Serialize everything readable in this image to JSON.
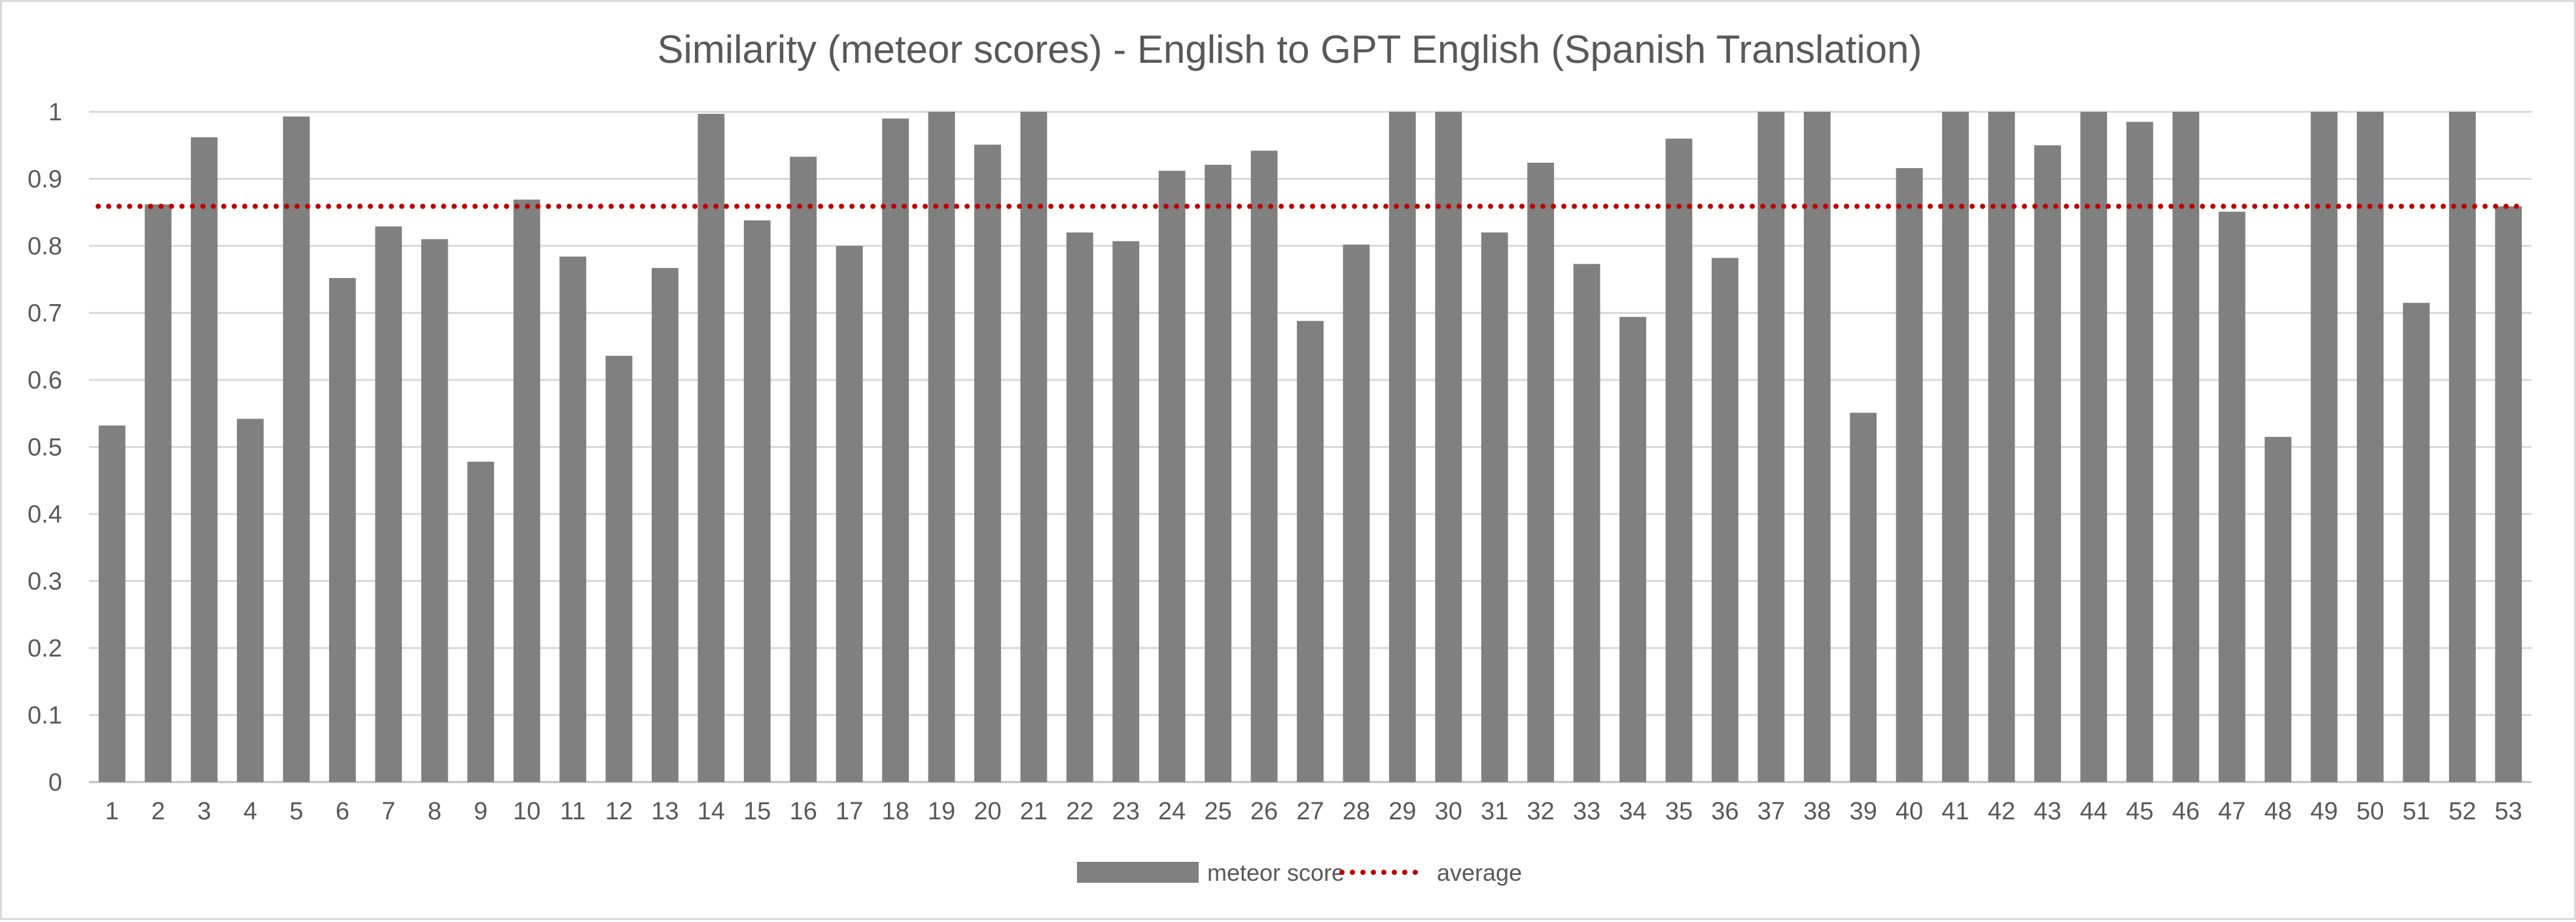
{
  "chart_data": {
    "type": "bar",
    "title": "Similarity (meteor scores) - English to GPT English (Spanish Translation)",
    "xlabel": "",
    "ylabel": "",
    "ylim": [
      0,
      1
    ],
    "yticks": [
      "0",
      "0.1",
      "0.2",
      "0.3",
      "0.4",
      "0.5",
      "0.6",
      "0.7",
      "0.8",
      "0.9",
      "1"
    ],
    "grid": true,
    "legend_position": "bottom",
    "categories": [
      "1",
      "2",
      "3",
      "4",
      "5",
      "6",
      "7",
      "8",
      "9",
      "10",
      "11",
      "12",
      "13",
      "14",
      "15",
      "16",
      "17",
      "18",
      "19",
      "20",
      "21",
      "22",
      "23",
      "24",
      "25",
      "26",
      "27",
      "28",
      "29",
      "30",
      "31",
      "32",
      "33",
      "34",
      "35",
      "36",
      "37",
      "38",
      "39",
      "40",
      "41",
      "42",
      "43",
      "44",
      "45",
      "46",
      "47",
      "48",
      "49",
      "50",
      "51",
      "52",
      "53"
    ],
    "series": [
      {
        "name": "meteor score",
        "type": "bar",
        "color": "#808080",
        "values": [
          0.532,
          0.862,
          0.962,
          0.542,
          0.993,
          0.752,
          0.829,
          0.81,
          0.478,
          0.869,
          0.784,
          0.636,
          0.767,
          0.997,
          0.838,
          0.933,
          0.8,
          0.99,
          1.0,
          0.951,
          1.0,
          0.82,
          0.807,
          0.912,
          0.921,
          0.942,
          0.688,
          0.802,
          1.0,
          1.0,
          0.82,
          0.924,
          0.773,
          0.694,
          0.96,
          0.782,
          1.0,
          1.0,
          0.551,
          0.916,
          1.0,
          1.0,
          0.95,
          1.0,
          0.985,
          1.0,
          0.851,
          0.515,
          1.0,
          1.0,
          0.715,
          1.0,
          0.859
        ]
      },
      {
        "name": "average",
        "type": "line",
        "style": "dotted",
        "color": "#c00000",
        "value": 0.859
      }
    ]
  }
}
